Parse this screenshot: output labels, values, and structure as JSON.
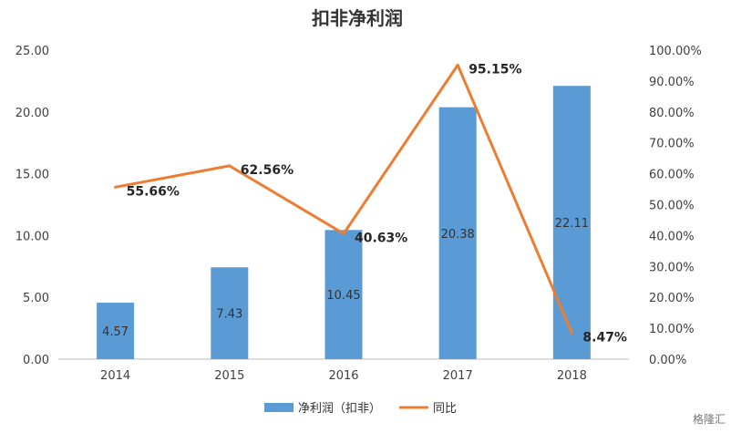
{
  "chart_data": {
    "type": "bar",
    "title": "扣非净利润",
    "categories": [
      "2014",
      "2015",
      "2016",
      "2017",
      "2018"
    ],
    "series": [
      {
        "name": "净利润（扣非）",
        "type": "bar",
        "axis": "left",
        "color": "#5B9BD5",
        "values": [
          4.57,
          7.43,
          10.45,
          20.38,
          22.11
        ],
        "labels": [
          "4.57",
          "7.43",
          "10.45",
          "20.38",
          "22.11"
        ]
      },
      {
        "name": "同比",
        "type": "line",
        "axis": "right",
        "color": "#ED7D31",
        "values": [
          55.66,
          62.56,
          40.63,
          95.15,
          8.47
        ],
        "labels": [
          "55.66%",
          "62.56%",
          "40.63%",
          "95.15%",
          "8.47%"
        ]
      }
    ],
    "y_left": {
      "min": 0,
      "max": 25,
      "ticks": [
        0,
        5,
        10,
        15,
        20,
        25
      ],
      "tick_labels": [
        "0.00",
        "5.00",
        "10.00",
        "15.00",
        "20.00",
        "25.00"
      ]
    },
    "y_right": {
      "min": 0,
      "max": 100,
      "ticks": [
        0,
        10,
        20,
        30,
        40,
        50,
        60,
        70,
        80,
        90,
        100
      ],
      "tick_labels": [
        "0.00%",
        "10.00%",
        "20.00%",
        "30.00%",
        "40.00%",
        "50.00%",
        "60.00%",
        "70.00%",
        "80.00%",
        "90.00%",
        "100.00%"
      ]
    },
    "grid": false,
    "legend_position": "bottom"
  },
  "watermark": "格隆汇"
}
